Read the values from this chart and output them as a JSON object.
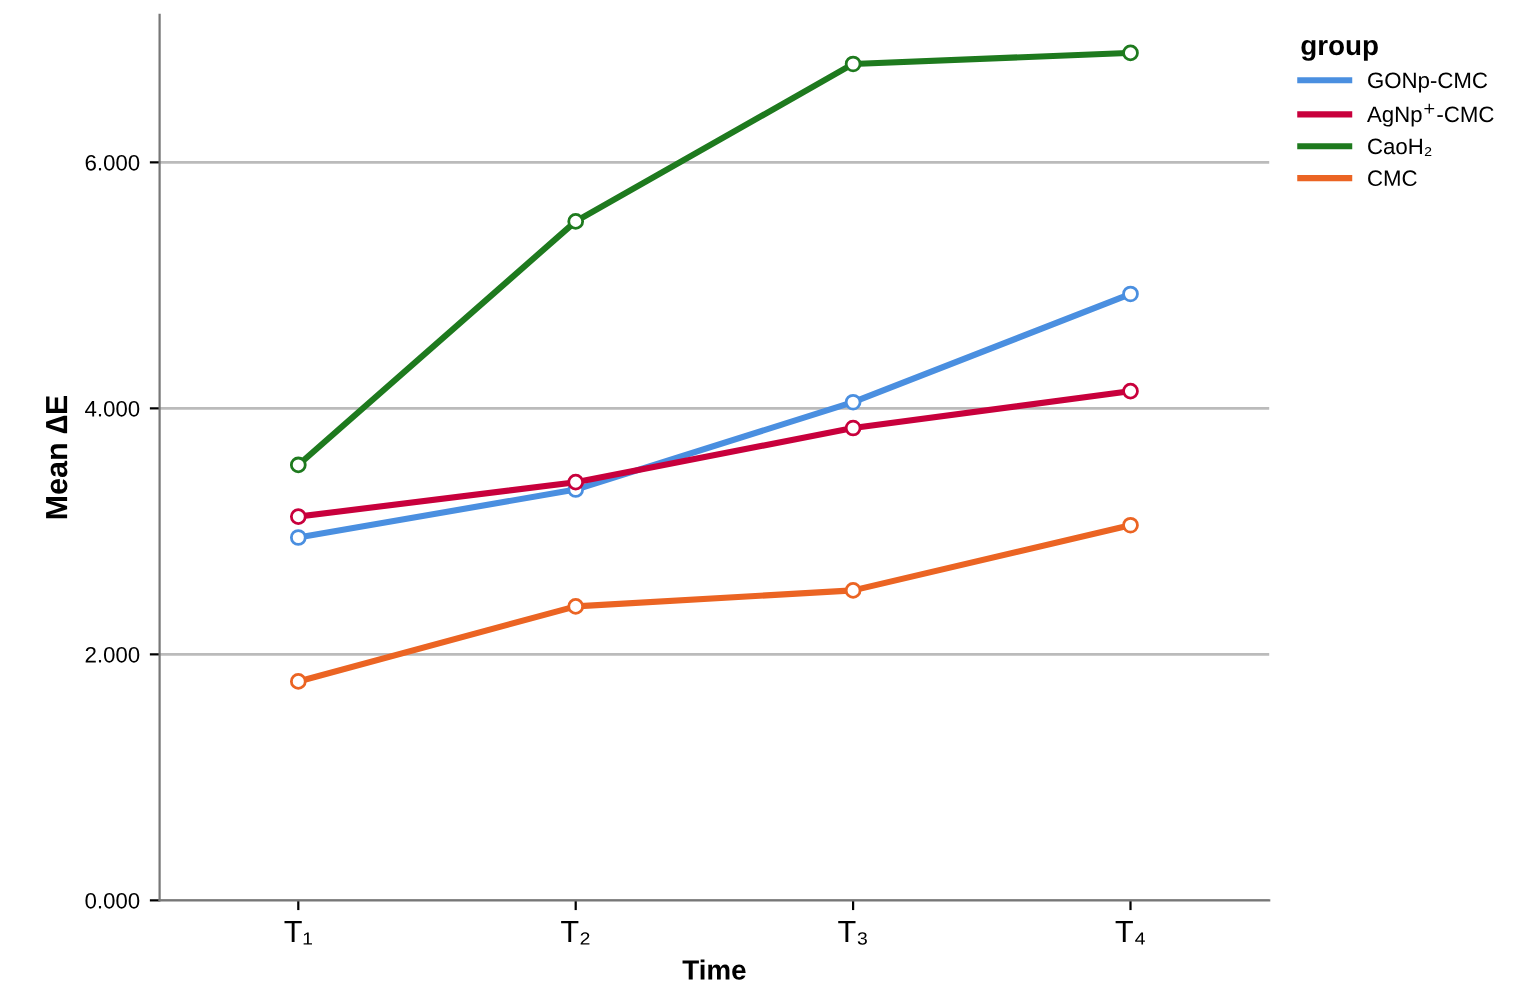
{
  "chart_data": {
    "type": "line",
    "xlabel": "Time",
    "ylabel": "Mean ∆E",
    "legend_title": "group",
    "categories": [
      "T₁",
      "T₂",
      "T₃",
      "T₄"
    ],
    "series": [
      {
        "name": "GONp-CMC",
        "color": "#4a8fe0",
        "values": [
          2.95,
          3.34,
          4.05,
          4.93
        ]
      },
      {
        "name": "AgNp$^{+}$-CMC",
        "color": "#c8003c",
        "values": [
          3.12,
          3.4,
          3.84,
          4.14
        ]
      },
      {
        "name": "CaoH₂",
        "color": "#1e7a1e",
        "values": [
          3.54,
          5.52,
          6.8,
          6.89
        ]
      },
      {
        "name": "CMC",
        "color": "#eb6423",
        "values": [
          1.78,
          2.39,
          2.52,
          3.05
        ]
      }
    ],
    "ylim": [
      0,
      7.2
    ],
    "yticks": [
      {
        "value": 0,
        "label": "0.000"
      },
      {
        "value": 2,
        "label": "2.000"
      },
      {
        "value": 4,
        "label": "4.000"
      },
      {
        "value": 6,
        "label": "6.000"
      }
    ],
    "grid": "y",
    "legend": "top right",
    "marker": "circle",
    "line_style": "solid"
  }
}
